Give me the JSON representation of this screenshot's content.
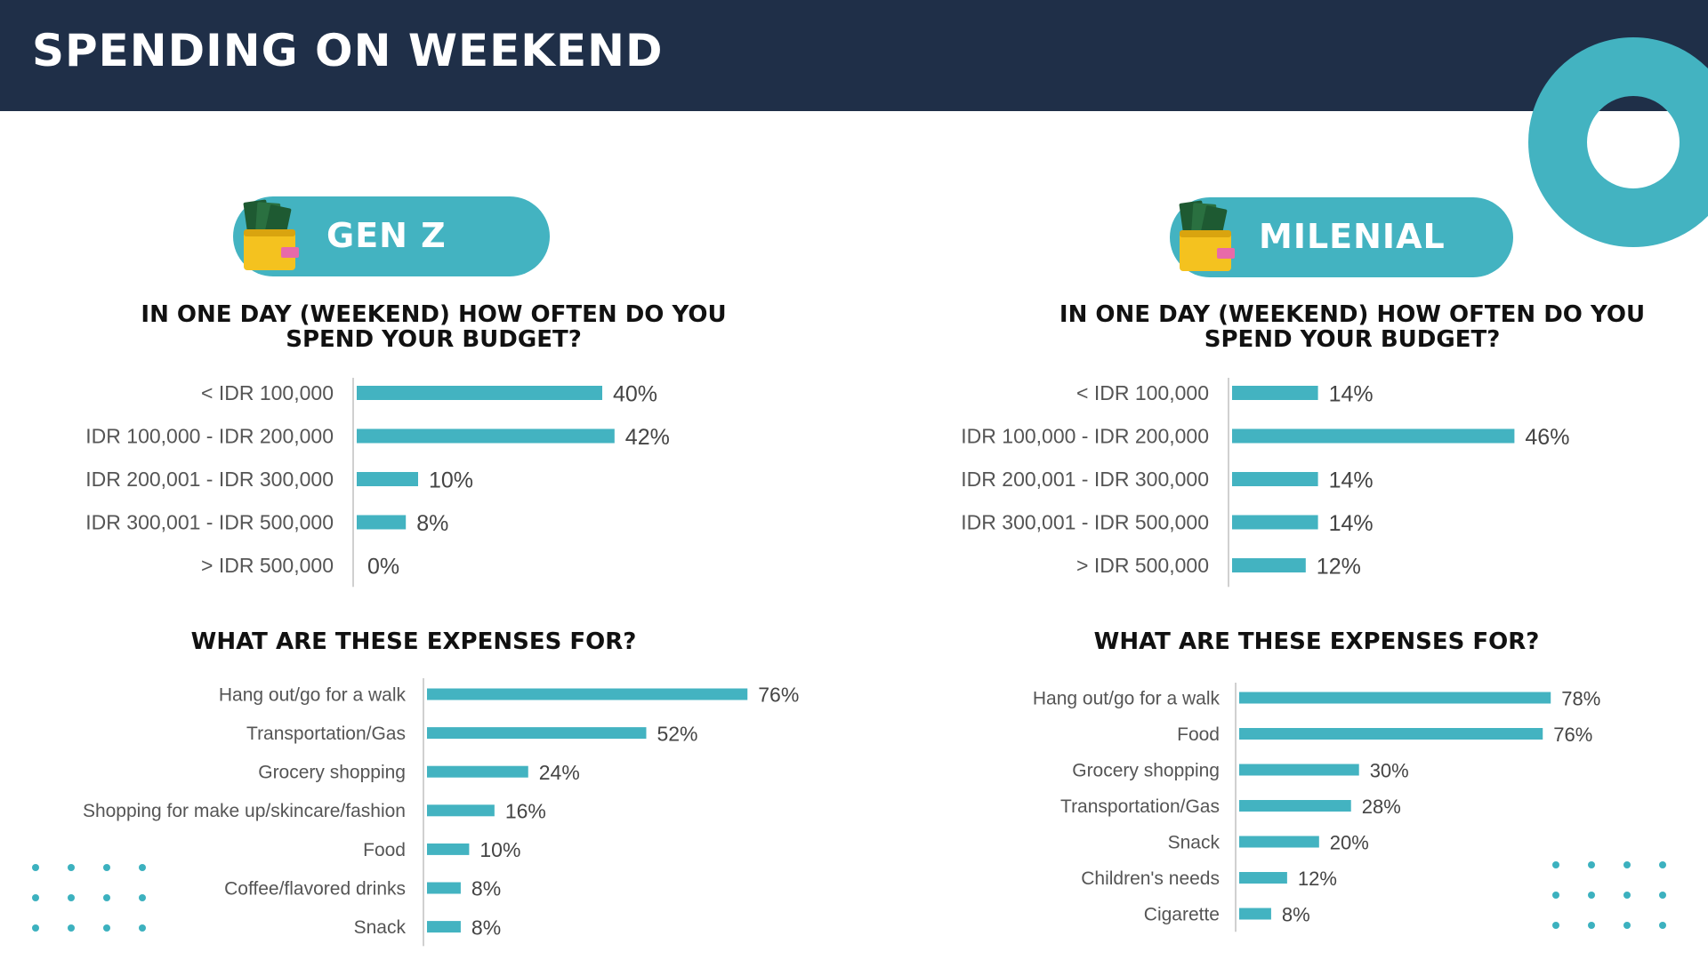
{
  "page": {
    "title": "SPENDING ON WEEKEND"
  },
  "colors": {
    "header_bg": "#1f2f48",
    "accent": "#43b3c1",
    "bar": "#43b3c1"
  },
  "panels": {
    "genz": {
      "label": "GEN Z",
      "budget_question": "IN ONE DAY (WEEKEND) HOW OFTEN DO YOU SPEND YOUR BUDGET?",
      "expenses_question": "WHAT ARE THESE EXPENSES FOR?"
    },
    "milenial": {
      "label": "MILENIAL",
      "budget_question": "IN ONE DAY (WEEKEND) HOW OFTEN DO YOU SPEND YOUR BUDGET?",
      "expenses_question": "WHAT ARE THESE EXPENSES FOR?"
    }
  },
  "chart_data": [
    {
      "id": "genz-budget",
      "type": "bar",
      "orientation": "horizontal",
      "categories": [
        "< IDR 100,000",
        "IDR 100,000 - IDR 200,000",
        "IDR 200,001 - IDR 300,000",
        "IDR 300,001 - IDR 500,000",
        "> IDR 500,000"
      ],
      "values": [
        40,
        42,
        10,
        8,
        0
      ],
      "unit": "%",
      "xlim": [
        0,
        100
      ],
      "grid": false
    },
    {
      "id": "milenial-budget",
      "type": "bar",
      "orientation": "horizontal",
      "categories": [
        "< IDR 100,000",
        "IDR 100,000 - IDR 200,000",
        "IDR 200,001 - IDR 300,000",
        "IDR 300,001 - IDR 500,000",
        "> IDR 500,000"
      ],
      "values": [
        14,
        46,
        14,
        14,
        12
      ],
      "unit": "%",
      "xlim": [
        0,
        100
      ],
      "grid": false
    },
    {
      "id": "genz-expenses",
      "type": "bar",
      "orientation": "horizontal",
      "categories": [
        "Hang out/go for a walk",
        "Transportation/Gas",
        "Grocery shopping",
        "Shopping for make up/skincare/fashion",
        "Food",
        "Coffee/flavored drinks",
        "Snack"
      ],
      "values": [
        76,
        52,
        24,
        16,
        10,
        8,
        8
      ],
      "unit": "%",
      "xlim": [
        0,
        100
      ],
      "grid": false
    },
    {
      "id": "milenial-expenses",
      "type": "bar",
      "orientation": "horizontal",
      "categories": [
        "Hang out/go for a walk",
        "Food",
        "Grocery shopping",
        "Transportation/Gas",
        "Snack",
        "Children's needs",
        "Cigarette"
      ],
      "values": [
        78,
        76,
        30,
        28,
        20,
        12,
        8
      ],
      "unit": "%",
      "xlim": [
        0,
        100
      ],
      "grid": false
    }
  ]
}
